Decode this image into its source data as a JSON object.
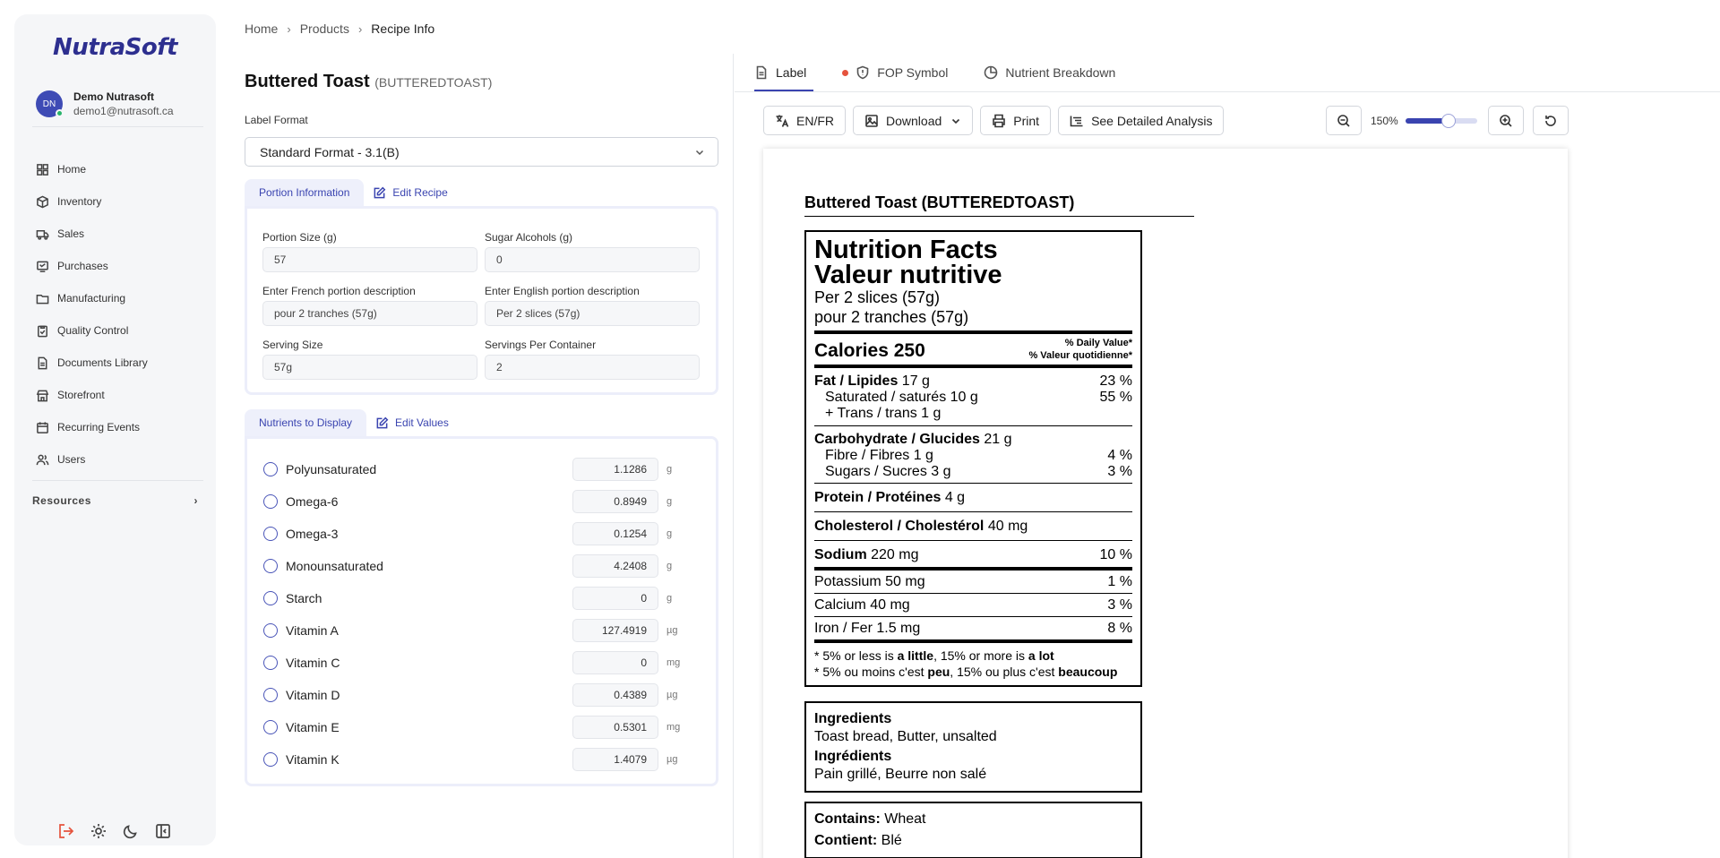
{
  "app": {
    "logo": "NutraSoft"
  },
  "user": {
    "initials": "DN",
    "name": "Demo Nutrasoft",
    "email": "demo1@nutrasoft.ca"
  },
  "nav": [
    {
      "label": "Home",
      "icon": "grid-icon"
    },
    {
      "label": "Inventory",
      "icon": "box-icon"
    },
    {
      "label": "Sales",
      "icon": "truck-icon"
    },
    {
      "label": "Purchases",
      "icon": "cart-icon"
    },
    {
      "label": "Manufacturing",
      "icon": "folder-icon"
    },
    {
      "label": "Quality Control",
      "icon": "clipboard-icon"
    },
    {
      "label": "Documents Library",
      "icon": "document-icon"
    },
    {
      "label": "Storefront",
      "icon": "store-icon"
    },
    {
      "label": "Recurring Events",
      "icon": "calendar-icon"
    },
    {
      "label": "Users",
      "icon": "users-icon"
    }
  ],
  "resources": {
    "label": "Resources"
  },
  "breadcrumb": {
    "home": "Home",
    "products": "Products",
    "current": "Recipe Info"
  },
  "recipe": {
    "name": "Buttered Toast",
    "code": "(BUTTEREDTOAST)"
  },
  "label_format": {
    "label": "Label Format",
    "value": "Standard Format - 3.1(B)"
  },
  "portion_tab": {
    "active": "Portion Information",
    "link": "Edit Recipe"
  },
  "portion": {
    "portion_size": {
      "label": "Portion Size (g)",
      "value": "57"
    },
    "sugar_alcohols": {
      "label": "Sugar Alcohols (g)",
      "value": "0"
    },
    "french_desc": {
      "label": "Enter French portion description",
      "value": "pour 2 tranches (57g)"
    },
    "english_desc": {
      "label": "Enter English portion description",
      "value": "Per 2 slices (57g)"
    },
    "serving_size": {
      "label": "Serving Size",
      "value": "57g"
    },
    "servings_per_container": {
      "label": "Servings Per Container",
      "value": "2"
    }
  },
  "nutrients_tab": {
    "active": "Nutrients to Display",
    "link": "Edit Values"
  },
  "nutrients": [
    {
      "name": "Polyunsaturated",
      "value": "1.1286",
      "unit": "g"
    },
    {
      "name": "Omega-6",
      "value": "0.8949",
      "unit": "g"
    },
    {
      "name": "Omega-3",
      "value": "0.1254",
      "unit": "g"
    },
    {
      "name": "Monounsaturated",
      "value": "4.2408",
      "unit": "g"
    },
    {
      "name": "Starch",
      "value": "0",
      "unit": "g"
    },
    {
      "name": "Vitamin A",
      "value": "127.4919",
      "unit": "µg"
    },
    {
      "name": "Vitamin C",
      "value": "0",
      "unit": "mg"
    },
    {
      "name": "Vitamin D",
      "value": "0.4389",
      "unit": "µg"
    },
    {
      "name": "Vitamin E",
      "value": "0.5301",
      "unit": "mg"
    },
    {
      "name": "Vitamin K",
      "value": "1.4079",
      "unit": "µg"
    }
  ],
  "right_tabs": {
    "label": "Label",
    "fop": "FOP Symbol",
    "breakdown": "Nutrient Breakdown"
  },
  "toolbar": {
    "lang": "EN/FR",
    "download": "Download",
    "print": "Print",
    "analysis": "See Detailed Analysis"
  },
  "zoom": {
    "level": "150%",
    "slider_fraction": 0.6
  },
  "label": {
    "title": "Buttered Toast (BUTTEREDTOAST)",
    "nf_en": "Nutrition Facts",
    "nf_fr": "Valeur nutritive",
    "serving_en": "Per 2 slices (57g)",
    "serving_fr": "pour 2 tranches (57g)",
    "calories": "Calories 250",
    "dv_en": "% Daily Value*",
    "dv_fr": "% Valeur quotidienne*",
    "fat": {
      "name": "Fat / Lipides",
      "amount": "17 g",
      "dv": "23 %"
    },
    "saturated": {
      "name": "Saturated / saturés 10 g",
      "dv": "55 %"
    },
    "trans": {
      "name": "+ Trans / trans 1 g"
    },
    "carb": {
      "name": "Carbohydrate / Glucides",
      "amount": "21 g"
    },
    "fibre": {
      "name": "Fibre / Fibres 1 g",
      "dv": "4 %"
    },
    "sugars": {
      "name": "Sugars / Sucres 3 g",
      "dv": "3 %"
    },
    "protein": {
      "name": "Protein / Protéines",
      "amount": "4 g"
    },
    "cholesterol": {
      "name": "Cholesterol / Cholestérol",
      "amount": "40 mg"
    },
    "sodium": {
      "name": "Sodium",
      "amount": "220 mg",
      "dv": "10 %"
    },
    "potassium": {
      "name": "Potassium 50 mg",
      "dv": "1 %"
    },
    "calcium": {
      "name": "Calcium 40 mg",
      "dv": "3 %"
    },
    "iron": {
      "name": "Iron / Fer 1.5 mg",
      "dv": "8 %"
    },
    "foot_en": {
      "a": "* 5% or less is ",
      "b": "a little",
      "c": ", 15% or more is ",
      "d": "a lot"
    },
    "foot_fr": {
      "a": "* 5% ou moins c'est ",
      "b": "peu",
      "c": ", 15% ou plus c'est ",
      "d": "beaucoup"
    },
    "ingredients_en_h": "Ingredients",
    "ingredients_en": "Toast bread, Butter, unsalted",
    "ingredients_fr_h": "Ingrédients",
    "ingredients_fr": "Pain grillé, Beurre non salé",
    "contains_en_h": "Contains:",
    "contains_en": " Wheat",
    "contains_fr_h": "Contient:",
    "contains_fr": " Blé"
  },
  "colors": {
    "accent": "#3a44b0",
    "logo": "#2d2f8f",
    "status_online": "#28b46b",
    "fop_dot": "#e5533d",
    "logout": "#e5533d"
  }
}
